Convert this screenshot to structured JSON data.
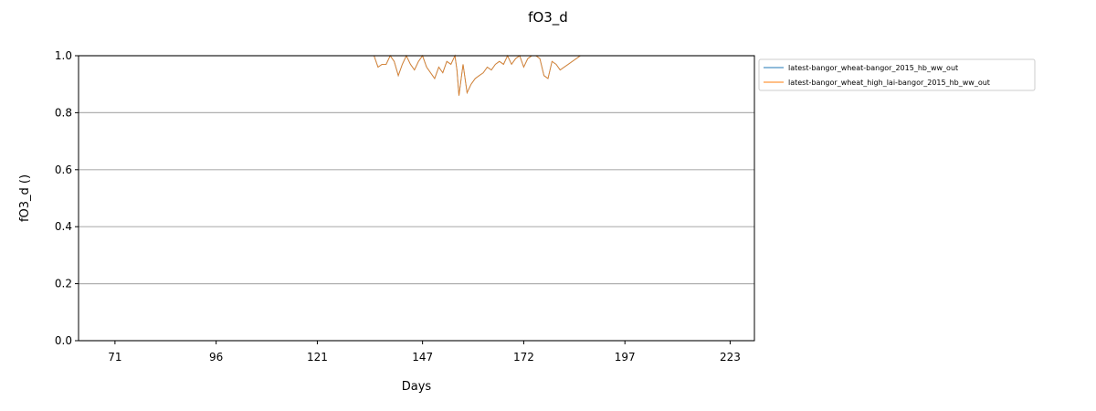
{
  "chart_data": {
    "type": "line",
    "title": "fO3_d",
    "xlabel": "Days",
    "ylabel": "fO3_d ()",
    "xlim": [
      62,
      229
    ],
    "ylim": [
      0.0,
      1.0
    ],
    "xticks": [
      71,
      96,
      121,
      147,
      172,
      197,
      223
    ],
    "yticks": [
      0.0,
      0.2,
      0.4,
      0.6,
      0.8,
      1.0
    ],
    "ytick_labels": [
      "0.0",
      "0.2",
      "0.4",
      "0.6",
      "0.8",
      "1.0"
    ],
    "grid": "horizontal",
    "legend_position": "outside-top-right",
    "colors": {
      "series1": "#1f77b4",
      "series2": "#ff7f0e"
    },
    "series": [
      {
        "name": "latest-bangor_wheat-bangor_2015_hb_ww_out",
        "x": [
          62,
          130,
          135,
          136,
          137,
          138,
          139,
          140,
          141,
          142,
          143,
          144,
          145,
          146,
          147,
          148,
          149,
          150,
          151,
          152,
          153,
          154,
          155,
          155.5,
          156,
          157,
          158,
          159,
          160,
          161,
          162,
          163,
          164,
          165,
          166,
          167,
          168,
          169,
          170,
          171,
          172,
          173,
          174,
          175,
          176,
          177,
          178,
          179,
          180,
          181,
          182,
          183,
          184,
          185,
          186,
          187,
          229
        ],
        "y": [
          1.0,
          1.0,
          1.0,
          0.96,
          0.97,
          0.97,
          1.0,
          0.98,
          0.93,
          0.97,
          1.0,
          0.97,
          0.95,
          0.98,
          1.0,
          0.96,
          0.94,
          0.92,
          0.96,
          0.94,
          0.98,
          0.97,
          1.0,
          0.95,
          0.86,
          0.97,
          0.87,
          0.9,
          0.92,
          0.93,
          0.94,
          0.96,
          0.95,
          0.97,
          0.98,
          0.97,
          1.0,
          0.97,
          0.99,
          1.0,
          0.96,
          0.99,
          1.0,
          1.0,
          0.99,
          0.93,
          0.92,
          0.98,
          0.97,
          0.95,
          0.96,
          0.97,
          0.98,
          0.99,
          1.0,
          1.0,
          1.0
        ]
      },
      {
        "name": "latest-bangor_wheat_high_lai-bangor_2015_hb_ww_out",
        "x": [
          62,
          130,
          135,
          136,
          137,
          138,
          139,
          140,
          141,
          142,
          143,
          144,
          145,
          146,
          147,
          148,
          149,
          150,
          151,
          152,
          153,
          154,
          155,
          155.5,
          156,
          157,
          158,
          159,
          160,
          161,
          162,
          163,
          164,
          165,
          166,
          167,
          168,
          169,
          170,
          171,
          172,
          173,
          174,
          175,
          176,
          177,
          178,
          179,
          180,
          181,
          182,
          183,
          184,
          185,
          186,
          187,
          229
        ],
        "y": [
          1.0,
          1.0,
          1.0,
          0.96,
          0.97,
          0.97,
          1.0,
          0.98,
          0.93,
          0.97,
          1.0,
          0.97,
          0.95,
          0.98,
          1.0,
          0.96,
          0.94,
          0.92,
          0.96,
          0.94,
          0.98,
          0.97,
          1.0,
          0.95,
          0.86,
          0.97,
          0.87,
          0.9,
          0.92,
          0.93,
          0.94,
          0.96,
          0.95,
          0.97,
          0.98,
          0.97,
          1.0,
          0.97,
          0.99,
          1.0,
          0.96,
          0.99,
          1.0,
          1.0,
          0.99,
          0.93,
          0.92,
          0.98,
          0.97,
          0.95,
          0.96,
          0.97,
          0.98,
          0.99,
          1.0,
          1.0,
          1.0
        ]
      }
    ]
  }
}
